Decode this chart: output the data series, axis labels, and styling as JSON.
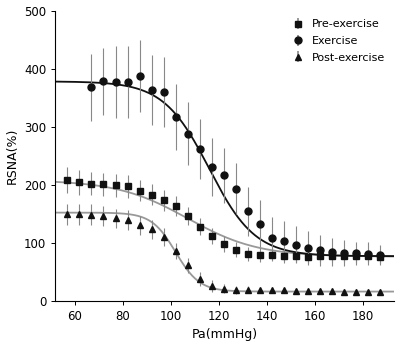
{
  "title": "",
  "xlabel": "Pa(mmHg)",
  "ylabel": "RSNA(%)",
  "xlim": [
    52,
    193
  ],
  "ylim": [
    0,
    500
  ],
  "yticks": [
    0,
    100,
    200,
    300,
    400,
    500
  ],
  "xticks": [
    60,
    80,
    100,
    120,
    140,
    160,
    180
  ],
  "pre_exercise": {
    "x": [
      57,
      62,
      67,
      72,
      77,
      82,
      87,
      92,
      97,
      102,
      107,
      112,
      117,
      122,
      127,
      132,
      137,
      142,
      147,
      152,
      157,
      162,
      167,
      172,
      177,
      182,
      187
    ],
    "y": [
      208,
      204,
      202,
      201,
      199,
      197,
      190,
      183,
      173,
      163,
      146,
      128,
      112,
      98,
      88,
      81,
      79,
      79,
      77,
      77,
      76,
      77,
      77,
      77,
      77,
      77,
      76
    ],
    "yerr": [
      22,
      22,
      20,
      20,
      20,
      20,
      18,
      18,
      18,
      17,
      16,
      15,
      14,
      14,
      13,
      12,
      12,
      11,
      11,
      10,
      10,
      10,
      10,
      10,
      10,
      10,
      10
    ],
    "label": "Pre-exercise",
    "marker": "s",
    "color": "#111111",
    "fit_p1": 208,
    "fit_p2": 76,
    "fit_k": 0.068,
    "fit_x0": 107
  },
  "exercise": {
    "x": [
      67,
      72,
      77,
      82,
      87,
      92,
      97,
      102,
      107,
      112,
      117,
      122,
      127,
      132,
      137,
      142,
      147,
      152,
      157,
      162,
      167,
      172,
      177,
      182,
      187
    ],
    "y": [
      368,
      378,
      377,
      377,
      388,
      363,
      360,
      317,
      288,
      262,
      230,
      216,
      193,
      154,
      133,
      108,
      103,
      97,
      91,
      87,
      84,
      82,
      82,
      81,
      79
    ],
    "yerr": [
      58,
      58,
      62,
      62,
      62,
      60,
      60,
      57,
      54,
      52,
      50,
      47,
      44,
      42,
      40,
      37,
      34,
      32,
      30,
      27,
      24,
      22,
      20,
      20,
      18
    ],
    "label": "Exercise",
    "marker": "o",
    "color": "#111111",
    "fit_p1": 378,
    "fit_p2": 77,
    "fit_k": 0.105,
    "fit_x0": 116
  },
  "post_exercise": {
    "x": [
      57,
      62,
      67,
      72,
      77,
      82,
      87,
      92,
      97,
      102,
      107,
      112,
      117,
      122,
      127,
      132,
      137,
      142,
      147,
      152,
      157,
      162,
      167,
      172,
      177,
      182,
      187
    ],
    "y": [
      149,
      149,
      148,
      146,
      142,
      139,
      130,
      123,
      110,
      86,
      61,
      38,
      26,
      21,
      19,
      19,
      18,
      18,
      18,
      17,
      17,
      17,
      17,
      16,
      16,
      16,
      16
    ],
    "yerr": [
      18,
      18,
      18,
      17,
      17,
      17,
      16,
      16,
      15,
      14,
      13,
      12,
      10,
      8,
      7,
      6,
      5,
      5,
      5,
      4,
      4,
      4,
      4,
      4,
      4,
      4,
      4
    ],
    "label": "Post-exercise",
    "marker": "^",
    "color": "#111111",
    "fit_p1": 152,
    "fit_p2": 16,
    "fit_k": 0.2,
    "fit_x0": 102
  },
  "curve_color_pre": "#999999",
  "curve_color_exercise": "#111111",
  "curve_color_post": "#999999",
  "ecolor": "#888888",
  "figsize": [
    4.0,
    3.47
  ],
  "dpi": 100
}
